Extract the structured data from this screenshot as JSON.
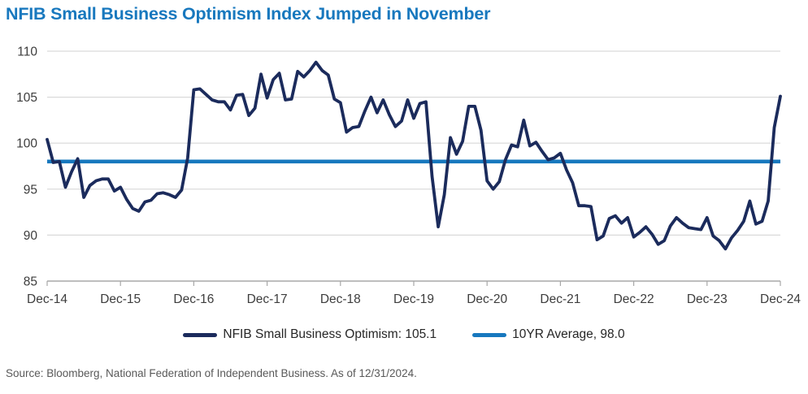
{
  "title": "NFIB Small Business Optimism Index Jumped in November",
  "source_note": "Source: Bloomberg, National Federation of Independent Business. As of 12/31/2024.",
  "legend": [
    {
      "label": "NFIB Small Business Optimism: 105.1",
      "color": "#1b2b5c"
    },
    {
      "label": "10YR Average, 98.0",
      "color": "#1778be"
    }
  ],
  "chart_data": {
    "type": "line",
    "title": "NFIB Small Business Optimism Index Jumped in November",
    "xlabel": "",
    "ylabel": "",
    "ylim": [
      85,
      110
    ],
    "y_ticks": [
      85,
      90,
      95,
      100,
      105,
      110
    ],
    "x_tick_labels": [
      "Dec-14",
      "Dec-15",
      "Dec-16",
      "Dec-17",
      "Dec-18",
      "Dec-19",
      "Dec-20",
      "Dec-21",
      "Dec-22",
      "Dec-23",
      "Dec-24"
    ],
    "frequency": "monthly",
    "grid": "horizontal",
    "legend_position": "bottom",
    "grid_color": "#d9d9d9",
    "axis_color": "#a8a8a8",
    "tick_label_color": "#3d3d3d",
    "series": [
      {
        "name": "NFIB Small Business Optimism",
        "color": "#1b2b5c",
        "last_value": 105.1,
        "x_start": "Dec-14",
        "values": [
          100.4,
          97.9,
          98.0,
          95.2,
          96.9,
          98.3,
          94.1,
          95.4,
          95.9,
          96.1,
          96.1,
          94.8,
          95.2,
          93.9,
          92.9,
          92.6,
          93.6,
          93.8,
          94.5,
          94.6,
          94.4,
          94.1,
          94.9,
          98.4,
          105.8,
          105.9,
          105.3,
          104.7,
          104.5,
          104.5,
          103.6,
          105.2,
          105.3,
          103.0,
          103.8,
          107.5,
          104.9,
          106.9,
          107.6,
          104.7,
          104.8,
          107.8,
          107.2,
          107.9,
          108.8,
          107.9,
          107.4,
          104.8,
          104.4,
          101.2,
          101.7,
          101.8,
          103.5,
          105.0,
          103.3,
          104.7,
          103.1,
          101.8,
          102.4,
          104.7,
          102.7,
          104.3,
          104.5,
          96.4,
          90.9,
          94.4,
          100.6,
          98.8,
          100.2,
          104.0,
          104.0,
          101.4,
          95.9,
          95.0,
          95.8,
          98.2,
          99.8,
          99.6,
          102.5,
          99.7,
          100.1,
          99.1,
          98.2,
          98.4,
          98.9,
          97.1,
          95.7,
          93.2,
          93.2,
          93.1,
          89.5,
          89.9,
          91.8,
          92.1,
          91.3,
          91.9,
          89.8,
          90.3,
          90.9,
          90.1,
          89.0,
          89.4,
          91.0,
          91.9,
          91.3,
          90.8,
          90.7,
          90.6,
          91.9,
          89.9,
          89.4,
          88.5,
          89.7,
          90.5,
          91.5,
          93.7,
          91.2,
          91.5,
          93.7,
          101.7,
          105.1
        ]
      },
      {
        "name": "10YR Average",
        "color": "#1778be",
        "constant": 98.0
      }
    ]
  }
}
